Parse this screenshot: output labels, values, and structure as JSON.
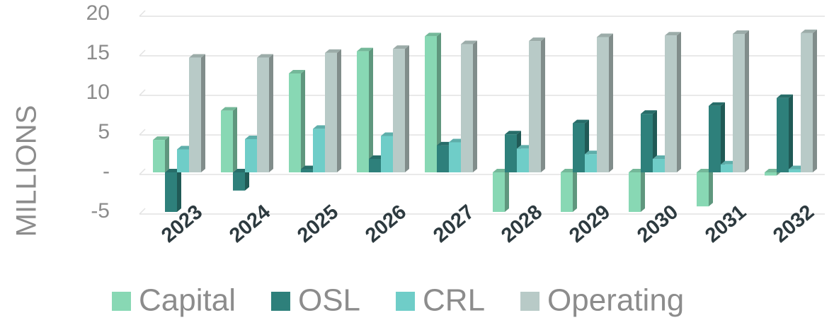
{
  "chart_data": {
    "type": "bar3d",
    "y_label": "MILLIONS",
    "categories": [
      "2023",
      "2024",
      "2025",
      "2026",
      "2027",
      "2028",
      "2029",
      "2030",
      "2031",
      "2032"
    ],
    "series": [
      {
        "name": "Capital",
        "color": "#88d8b4",
        "values": [
          4.1,
          7.8,
          12.5,
          15.3,
          17.2,
          -5,
          -5,
          -5,
          -4.3,
          -0.4
        ]
      },
      {
        "name": "OSL",
        "color": "#2e807b",
        "values": [
          -5,
          -2.3,
          0.4,
          1.7,
          3.4,
          4.8,
          6.2,
          7.4,
          8.4,
          9.4
        ]
      },
      {
        "name": "CRL",
        "color": "#6fcdc8",
        "values": [
          2.9,
          4.2,
          5.5,
          4.6,
          3.8,
          3.0,
          2.3,
          1.7,
          1.0,
          0.4
        ]
      },
      {
        "name": "Operating",
        "color": "#b8cac7",
        "values": [
          14.5,
          14.5,
          15.1,
          15.6,
          16.2,
          16.6,
          17.1,
          17.3,
          17.5,
          17.6
        ]
      }
    ],
    "ylim": [
      -5,
      20
    ],
    "yticks": [
      -5,
      {
        "value": 0,
        "label": "-"
      },
      5,
      10,
      15,
      20
    ],
    "grid": true
  }
}
